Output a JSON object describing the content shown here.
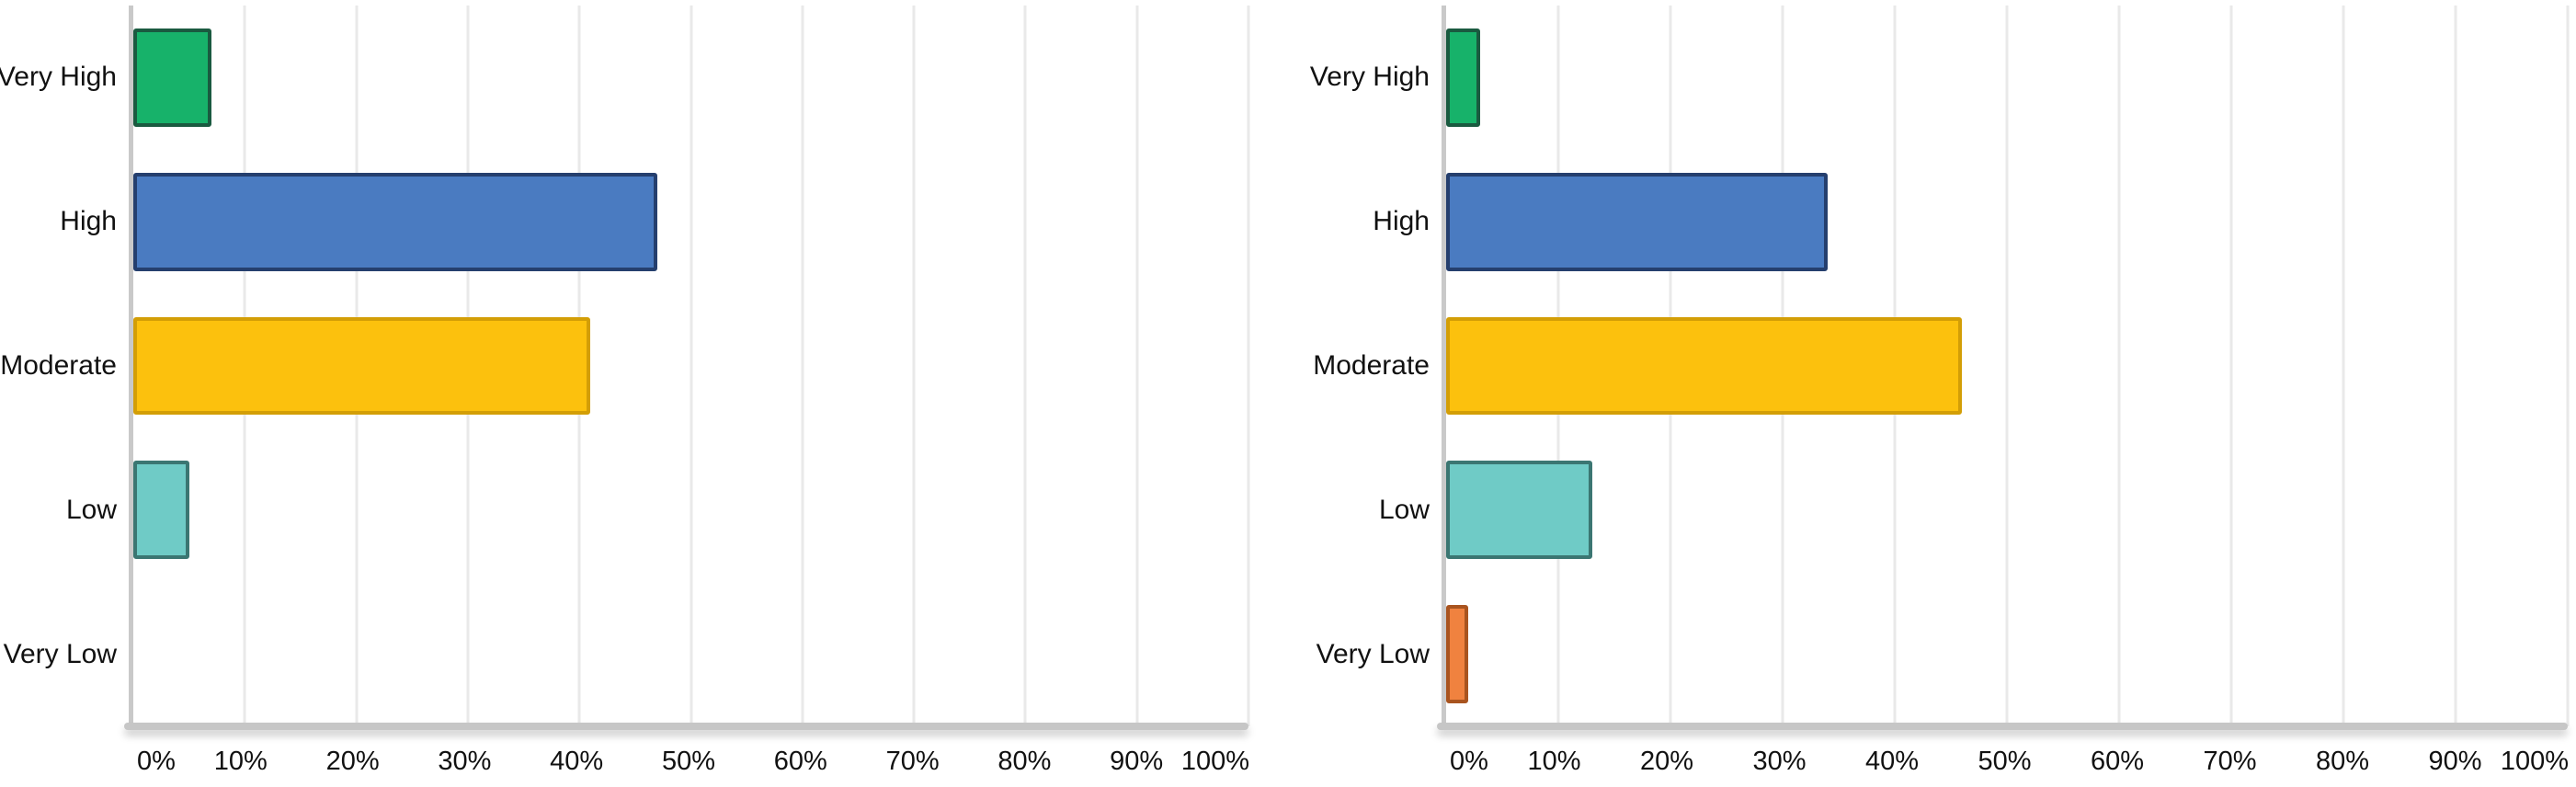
{
  "page": {
    "background": "#ffffff",
    "text_color": "#111111",
    "gridline_color": "#e9e9e9",
    "axis_line_color": "#c9c9c9"
  },
  "chart_data": [
    {
      "name": "left-risk-distribution",
      "type": "bar",
      "orientation": "horizontal",
      "categories": [
        "Very High",
        "High",
        "Moderate",
        "Low",
        "Very Low"
      ],
      "values": [
        7,
        47,
        41,
        5,
        0
      ],
      "unit": "%",
      "x_ticks": [
        "0%",
        "10%",
        "20%",
        "30%",
        "40%",
        "50%",
        "60%",
        "70%",
        "80%",
        "90%",
        "100%"
      ],
      "xlim": [
        0,
        100
      ],
      "grid": true,
      "legend": "none",
      "bar_colors": [
        "#17b26a",
        "#4a7bc1",
        "#fcc10d",
        "#6fcbc6",
        "#f0823f"
      ],
      "bar_border_colors": [
        "#1a5a40",
        "#253f6e",
        "#d39e06",
        "#3b7672",
        "#a9541f"
      ]
    },
    {
      "name": "right-risk-distribution",
      "type": "bar",
      "orientation": "horizontal",
      "categories": [
        "Very High",
        "High",
        "Moderate",
        "Low",
        "Very Low"
      ],
      "values": [
        3,
        34,
        46,
        13,
        2
      ],
      "unit": "%",
      "x_ticks": [
        "0%",
        "10%",
        "20%",
        "30%",
        "40%",
        "50%",
        "60%",
        "70%",
        "80%",
        "90%",
        "100%"
      ],
      "xlim": [
        0,
        100
      ],
      "grid": true,
      "legend": "none",
      "bar_colors": [
        "#17b26a",
        "#4a7bc1",
        "#fcc10d",
        "#6fcbc6",
        "#f0823f"
      ],
      "bar_border_colors": [
        "#1a5a40",
        "#253f6e",
        "#d39e06",
        "#3b7672",
        "#a9541f"
      ]
    }
  ]
}
